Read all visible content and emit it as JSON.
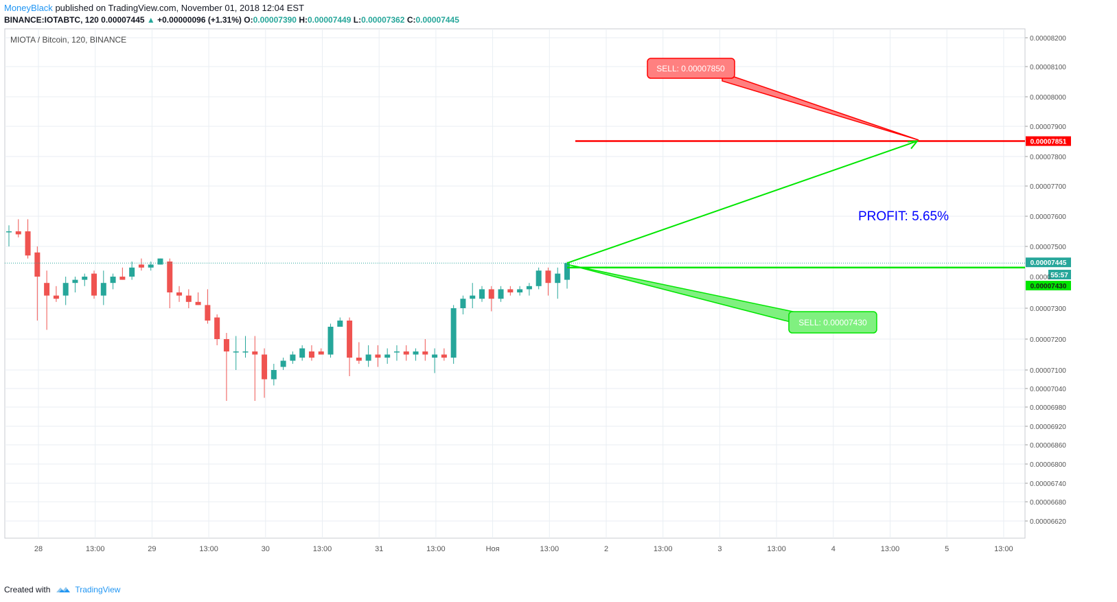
{
  "header": {
    "author": "MoneyBlack",
    "published": "published on TradingView.com, November 01, 2018 12:04 EST",
    "symbol_line": "BINANCE:IOTABTC, 120",
    "last_price": "0.00007445",
    "change_arrow": "▲",
    "change": "+0.00000096 (+1.31%)",
    "o_label": "O:",
    "o_value": "0.00007390",
    "h_label": "H:",
    "h_value": "0.00007449",
    "l_label": "L:",
    "l_value": "0.00007362",
    "c_label": "C:",
    "c_value": "0.00007445"
  },
  "chart_title": "MIOTA / Bitcoin, 120, BINANCE",
  "footer": {
    "created_with": "Created with",
    "brand": "TradingView"
  },
  "colors": {
    "up": "#26a69a",
    "down": "#ef5350",
    "sell_red": "#ff0000",
    "target_green": "#00e600",
    "profit_text": "#0000ff",
    "grid": "#e9eef3"
  },
  "annotations": {
    "sell_top_label": "SELL: 0.00007850",
    "sell_bottom_label": "SELL: 0.00007430",
    "profit_label": "PROFIT: 5.65%",
    "red_price_tag": "0.00007851",
    "last_price_tag": "0.00007445",
    "countdown_tag": "55:57",
    "green_price_tag": "0.00007430",
    "price_label_behind_tags": "0.0000"
  },
  "chart_data": {
    "type": "candlestick",
    "title": "MIOTA / Bitcoin, 120, BINANCE",
    "x_tick_labels": [
      "28",
      "13:00",
      "29",
      "13:00",
      "30",
      "13:00",
      "31",
      "13:00",
      "Ноя",
      "13:00",
      "2",
      "13:00",
      "3",
      "13:00",
      "4",
      "13:00",
      "5",
      "13:00"
    ],
    "y_tick_labels": [
      "0.00008200",
      "0.00008100",
      "0.00008000",
      "0.00007900",
      "0.00007800",
      "0.00007700",
      "0.00007600",
      "0.00007500",
      "0.00007300",
      "0.00007200",
      "0.00007100",
      "0.00007040",
      "0.00006980",
      "0.00006920",
      "0.00006860",
      "0.00006800",
      "0.00006740",
      "0.00006680",
      "0.00006620"
    ],
    "y_scale": "non-linear (approx. log / compressed below 0.00007100)",
    "horizontal_lines": [
      {
        "name": "sell target",
        "value": 7.851e-05,
        "color": "#ff0000"
      },
      {
        "name": "green level",
        "value": 7.43e-05,
        "color": "#00e600"
      }
    ],
    "last_price": 7.445e-05,
    "candles_ohlc": [
      [
        7.55e-05,
        7.57e-05,
        7.5e-05,
        7.55e-05
      ],
      [
        7.55e-05,
        7.59e-05,
        7.53e-05,
        7.54e-05
      ],
      [
        7.55e-05,
        7.59e-05,
        7.46e-05,
        7.47e-05
      ],
      [
        7.48e-05,
        7.5e-05,
        7.26e-05,
        7.4e-05
      ],
      [
        7.38e-05,
        7.42e-05,
        7.23e-05,
        7.34e-05
      ],
      [
        7.34e-05,
        7.37e-05,
        7.32e-05,
        7.33e-05
      ],
      [
        7.34e-05,
        7.4e-05,
        7.31e-05,
        7.38e-05
      ],
      [
        7.38e-05,
        7.4e-05,
        7.35e-05,
        7.39e-05
      ],
      [
        7.39e-05,
        7.41e-05,
        7.37e-05,
        7.4e-05
      ],
      [
        7.41e-05,
        7.42e-05,
        7.33e-05,
        7.34e-05
      ],
      [
        7.34e-05,
        7.42e-05,
        7.31e-05,
        7.38e-05
      ],
      [
        7.38e-05,
        7.41e-05,
        7.36e-05,
        7.4e-05
      ],
      [
        7.4e-05,
        7.43e-05,
        7.39e-05,
        7.39e-05
      ],
      [
        7.4e-05,
        7.45e-05,
        7.39e-05,
        7.43e-05
      ],
      [
        7.44e-05,
        7.46e-05,
        7.42e-05,
        7.43e-05
      ],
      [
        7.43e-05,
        7.45e-05,
        7.42e-05,
        7.44e-05
      ],
      [
        7.44e-05,
        7.46e-05,
        7.44e-05,
        7.46e-05
      ],
      [
        7.45e-05,
        7.46e-05,
        7.3e-05,
        7.35e-05
      ],
      [
        7.35e-05,
        7.37e-05,
        7.32e-05,
        7.34e-05
      ],
      [
        7.34e-05,
        7.36e-05,
        7.3e-05,
        7.32e-05
      ],
      [
        7.32e-05,
        7.35e-05,
        7.31e-05,
        7.31e-05
      ],
      [
        7.31e-05,
        7.36e-05,
        7.25e-05,
        7.26e-05
      ],
      [
        7.27e-05,
        7.28e-05,
        7.18e-05,
        7.2e-05
      ],
      [
        7.2e-05,
        7.22e-05,
        7e-05,
        7.16e-05
      ],
      [
        7.16e-05,
        7.21e-05,
        7.1e-05,
        7.16e-05
      ],
      [
        7.16e-05,
        7.21e-05,
        7.14e-05,
        7.16e-05
      ],
      [
        7.16e-05,
        7.21e-05,
        7e-05,
        7.15e-05
      ],
      [
        7.15e-05,
        7.17e-05,
        7.01e-05,
        7.07e-05
      ],
      [
        7.07e-05,
        7.12e-05,
        7.05e-05,
        7.1e-05
      ],
      [
        7.11e-05,
        7.14e-05,
        7.1e-05,
        7.13e-05
      ],
      [
        7.13e-05,
        7.16e-05,
        7.12e-05,
        7.15e-05
      ],
      [
        7.14e-05,
        7.18e-05,
        7.13e-05,
        7.17e-05
      ],
      [
        7.16e-05,
        7.18e-05,
        7.13e-05,
        7.14e-05
      ],
      [
        7.16e-05,
        7.17e-05,
        7.15e-05,
        7.15e-05
      ],
      [
        7.15e-05,
        7.25e-05,
        7.14e-05,
        7.24e-05
      ],
      [
        7.24e-05,
        7.27e-05,
        7.24e-05,
        7.26e-05
      ],
      [
        7.26e-05,
        7.27e-05,
        7.08e-05,
        7.14e-05
      ],
      [
        7.14e-05,
        7.19e-05,
        7.12e-05,
        7.13e-05
      ],
      [
        7.13e-05,
        7.18e-05,
        7.11e-05,
        7.15e-05
      ],
      [
        7.15e-05,
        7.18e-05,
        7.11e-05,
        7.14e-05
      ],
      [
        7.14e-05,
        7.17e-05,
        7.12e-05,
        7.15e-05
      ],
      [
        7.16e-05,
        7.18e-05,
        7.13e-05,
        7.16e-05
      ],
      [
        7.16e-05,
        7.18e-05,
        7.13e-05,
        7.15e-05
      ],
      [
        7.15e-05,
        7.17e-05,
        7.13e-05,
        7.16e-05
      ],
      [
        7.16e-05,
        7.2e-05,
        7.13e-05,
        7.15e-05
      ],
      [
        7.14e-05,
        7.17e-05,
        7.09e-05,
        7.15e-05
      ],
      [
        7.15e-05,
        7.17e-05,
        7.13e-05,
        7.14e-05
      ],
      [
        7.14e-05,
        7.31e-05,
        7.12e-05,
        7.3e-05
      ],
      [
        7.3e-05,
        7.34e-05,
        7.28e-05,
        7.33e-05
      ],
      [
        7.33e-05,
        7.38e-05,
        7.3e-05,
        7.34e-05
      ],
      [
        7.33e-05,
        7.37e-05,
        7.32e-05,
        7.36e-05
      ],
      [
        7.36e-05,
        7.37e-05,
        7.29e-05,
        7.33e-05
      ],
      [
        7.33e-05,
        7.37e-05,
        7.32e-05,
        7.36e-05
      ],
      [
        7.36e-05,
        7.37e-05,
        7.34e-05,
        7.35e-05
      ],
      [
        7.35e-05,
        7.37e-05,
        7.34e-05,
        7.36e-05
      ],
      [
        7.36e-05,
        7.38e-05,
        7.34e-05,
        7.37e-05
      ],
      [
        7.37e-05,
        7.43e-05,
        7.36e-05,
        7.42e-05
      ],
      [
        7.42e-05,
        7.43e-05,
        7.34e-05,
        7.38e-05
      ],
      [
        7.38e-05,
        7.43e-05,
        7.33e-05,
        7.41e-05
      ],
      [
        7.39e-05,
        7.449e-05,
        7.362e-05,
        7.445e-05
      ]
    ]
  }
}
